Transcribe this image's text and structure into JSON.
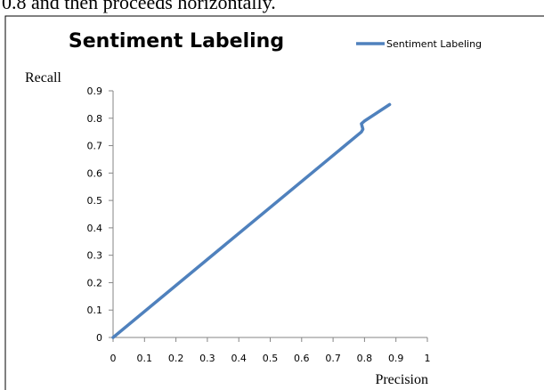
{
  "caption_fragment": "0.8 and then proceeds horizontally.",
  "chart_data": {
    "type": "line",
    "title": "Sentiment Labeling",
    "xlabel": "Precision",
    "ylabel": "Recall",
    "xlim": [
      0,
      1
    ],
    "ylim": [
      0,
      0.9
    ],
    "x_ticks": [
      0,
      0.1,
      0.2,
      0.3,
      0.4,
      0.5,
      0.6,
      0.7,
      0.8,
      0.9,
      1
    ],
    "x_tick_labels": [
      "0",
      "0.1",
      "0.2",
      "0.3",
      "0.4",
      "0.5",
      "0.6",
      "0.7",
      "0.8",
      "0.9",
      "1"
    ],
    "y_ticks": [
      0,
      0.1,
      0.2,
      0.3,
      0.4,
      0.5,
      0.6,
      0.7,
      0.8,
      0.9
    ],
    "y_tick_labels": [
      "0",
      "0.1",
      "0.2",
      "0.3",
      "0.4",
      "0.5",
      "0.6",
      "0.7",
      "0.8",
      "0.9"
    ],
    "grid": false,
    "legend_position": "top-right",
    "series": [
      {
        "name": "Sentiment Labeling",
        "color": "#4F81BD",
        "x": [
          0,
          0.79,
          0.795,
          0.79,
          0.8,
          0.88
        ],
        "y": [
          0,
          0.75,
          0.76,
          0.78,
          0.79,
          0.85
        ]
      }
    ]
  }
}
